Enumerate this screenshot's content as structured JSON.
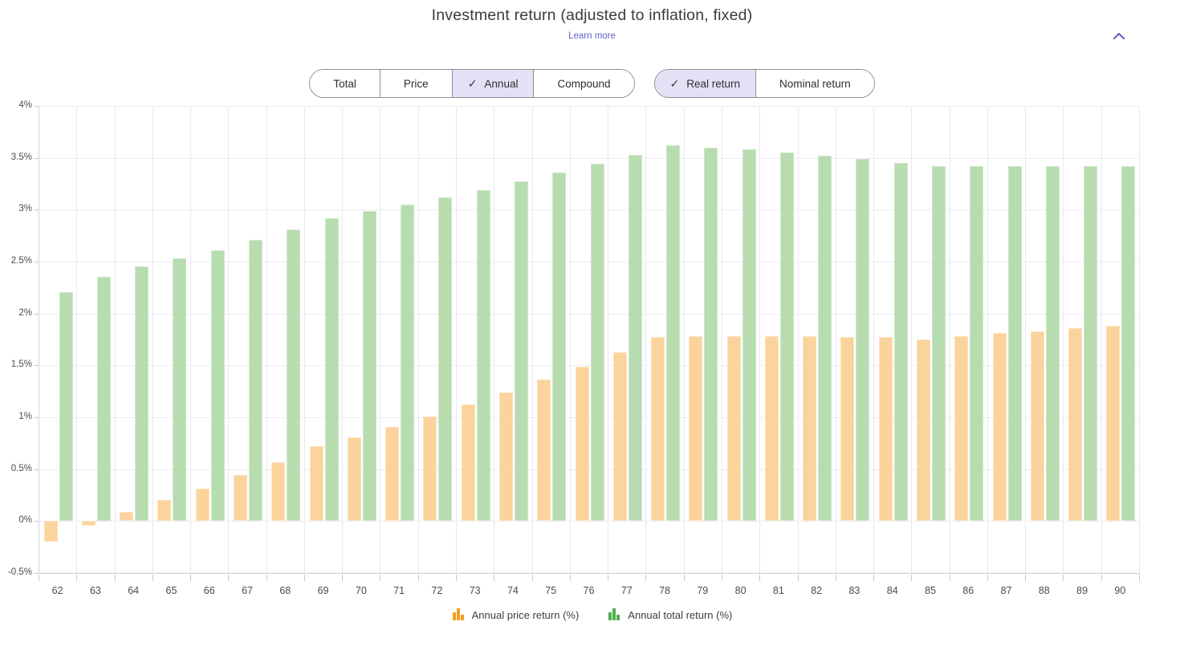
{
  "header": {
    "title": "Investment return (adjusted to inflation, fixed)",
    "learn_more": "Learn more"
  },
  "controls": {
    "checkmark": "✓",
    "view_toggle": {
      "options": [
        {
          "label": "Total",
          "selected": false
        },
        {
          "label": "Price",
          "selected": false
        },
        {
          "label": "Annual",
          "selected": true
        },
        {
          "label": "Compound",
          "selected": false
        }
      ]
    },
    "return_mode_toggle": {
      "options": [
        {
          "label": "Real return",
          "selected": true
        },
        {
          "label": "Nominal return",
          "selected": false
        }
      ]
    }
  },
  "colors": {
    "accent_purple": "#6f5fc0",
    "link_purple": "#6460c9",
    "selected_toggle_bg": "#e6e0f6",
    "price_bar": "#fbd39c",
    "total_bar": "#b6dcb0",
    "legend_price_icon": "#f39c1e",
    "legend_total_icon": "#4caf50",
    "grid_line": "#e9e8ee",
    "axis_text": "#4b4b4b"
  },
  "chart_data": {
    "type": "bar",
    "title": "Investment return (adjusted to inflation, fixed)",
    "categories": [
      "62",
      "63",
      "64",
      "65",
      "66",
      "67",
      "68",
      "69",
      "70",
      "71",
      "72",
      "73",
      "74",
      "75",
      "76",
      "77",
      "78",
      "79",
      "80",
      "81",
      "82",
      "83",
      "84",
      "85",
      "86",
      "87",
      "88",
      "89",
      "90"
    ],
    "series": [
      {
        "name": "Annual price return (%)",
        "key": "price",
        "color": "#fbd39c",
        "legend_icon_color": "#f39c1e",
        "values": [
          -0.2,
          -0.04,
          0.09,
          0.2,
          0.31,
          0.44,
          0.57,
          0.72,
          0.81,
          0.91,
          1.01,
          1.12,
          1.24,
          1.36,
          1.49,
          1.63,
          1.77,
          1.78,
          1.78,
          1.78,
          1.78,
          1.77,
          1.77,
          1.75,
          1.78,
          1.81,
          1.83,
          1.86,
          1.88
        ]
      },
      {
        "name": "Annual total return (%)",
        "key": "total",
        "color": "#b6dcb0",
        "legend_icon_color": "#4caf50",
        "values": [
          2.21,
          2.35,
          2.45,
          2.53,
          2.61,
          2.71,
          2.81,
          2.92,
          2.99,
          3.05,
          3.12,
          3.19,
          3.27,
          3.36,
          3.44,
          3.53,
          3.62,
          3.6,
          3.58,
          3.55,
          3.52,
          3.49,
          3.45,
          3.42,
          3.42,
          3.42,
          3.42,
          3.42,
          3.42
        ]
      }
    ],
    "ylim": [
      -0.5,
      4
    ],
    "yticks": [
      4,
      3.5,
      3,
      2.5,
      2,
      1.5,
      1,
      0.5,
      0,
      -0.5
    ],
    "ytick_labels": [
      "4%",
      "3.5%",
      "3%",
      "2.5%",
      "2%",
      "1.5%",
      "1%",
      "0.5%",
      "0%",
      "-0.5%"
    ],
    "grid": true,
    "legend_position": "bottom"
  }
}
